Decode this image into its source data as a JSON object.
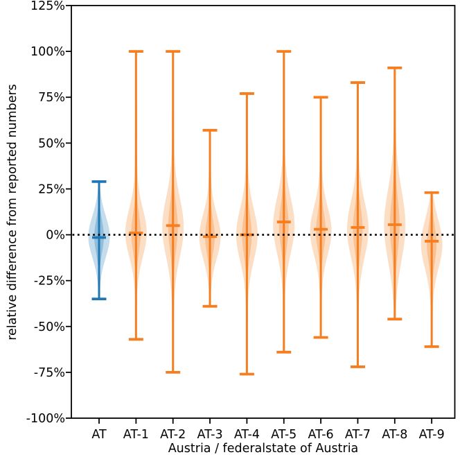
{
  "chart_data": {
    "type": "violin",
    "title": "",
    "xlabel": "Austria / federalstate of Austria",
    "ylabel": "relative difference from reported numbers",
    "unit": "%",
    "ylim": [
      -100,
      125
    ],
    "y_tick_values": [
      125,
      100,
      75,
      50,
      25,
      0,
      -25,
      -50,
      -75,
      -100
    ],
    "y_tick_labels": [
      "125%",
      "100%",
      "75%",
      "50%",
      "25%",
      "0%",
      "-25%",
      "-50%",
      "-75%",
      "-100%"
    ],
    "categories": [
      "AT",
      "AT-1",
      "AT-2",
      "AT-3",
      "AT-4",
      "AT-5",
      "AT-6",
      "AT-7",
      "AT-8",
      "AT-9"
    ],
    "zero_line": {
      "value": 0,
      "style": "dotted",
      "color": "#000000"
    },
    "grid": "off",
    "legend": "none",
    "violins": [
      {
        "label": "AT",
        "min": -35,
        "max": 29,
        "median": -1.5,
        "mode": -1,
        "spread": 11,
        "group": "country"
      },
      {
        "label": "AT-1",
        "min": -57,
        "max": 100,
        "median": 1,
        "mode": 1,
        "spread": 13,
        "group": "state"
      },
      {
        "label": "AT-2",
        "min": -75,
        "max": 100,
        "median": 5,
        "mode": 4,
        "spread": 16,
        "group": "state"
      },
      {
        "label": "AT-3",
        "min": -39,
        "max": 57,
        "median": -1,
        "mode": -1,
        "spread": 12,
        "group": "state"
      },
      {
        "label": "AT-4",
        "min": -76,
        "max": 77,
        "median": 0,
        "mode": 0,
        "spread": 14,
        "group": "state"
      },
      {
        "label": "AT-5",
        "min": -64,
        "max": 100,
        "median": 7,
        "mode": 5,
        "spread": 15,
        "group": "state"
      },
      {
        "label": "AT-6",
        "min": -56,
        "max": 75,
        "median": 3,
        "mode": 2,
        "spread": 13,
        "group": "state"
      },
      {
        "label": "AT-7",
        "min": -72,
        "max": 83,
        "median": 4,
        "mode": 3,
        "spread": 15,
        "group": "state"
      },
      {
        "label": "AT-8",
        "min": -46,
        "max": 91,
        "median": 5.5,
        "mode": 5,
        "spread": 19,
        "group": "state"
      },
      {
        "label": "AT-9",
        "min": -61,
        "max": 23,
        "median": -3.5,
        "mode": -5,
        "spread": 13,
        "group": "state"
      }
    ],
    "colors": {
      "country": "#1f77b4",
      "state": "#f57e20",
      "axis": "#000000",
      "background": "#ffffff"
    }
  }
}
